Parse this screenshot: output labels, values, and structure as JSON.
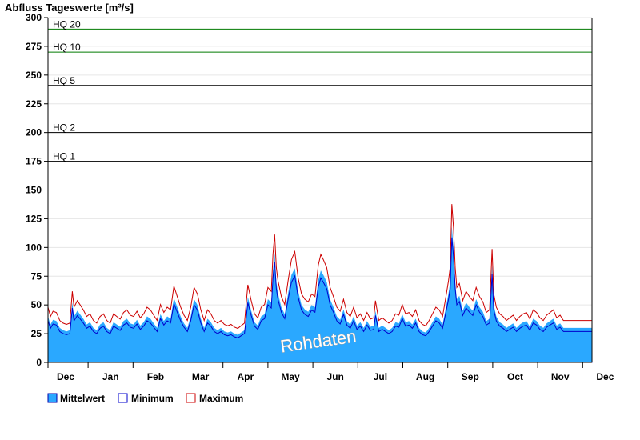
{
  "chart_data": {
    "type": "area",
    "title": "Abfluss Tageswerte [m³/s]",
    "ylim": [
      0,
      300
    ],
    "yticks": [
      0,
      25,
      50,
      75,
      100,
      125,
      150,
      175,
      200,
      225,
      250,
      275,
      300
    ],
    "grid": true,
    "x_months": [
      "Dec",
      "Jan",
      "Feb",
      "Mar",
      "Apr",
      "May",
      "Jun",
      "Jul",
      "Aug",
      "Sep",
      "Oct",
      "Nov",
      "Dec"
    ],
    "thresholds": [
      {
        "label": "HQ 20",
        "value": 290,
        "color": "#007a00"
      },
      {
        "label": "HQ 10",
        "value": 270,
        "color": "#007a00"
      },
      {
        "label": "HQ 5",
        "value": 241,
        "color": "#000000"
      },
      {
        "label": "HQ 2",
        "value": 200,
        "color": "#000000"
      },
      {
        "label": "HQ 1",
        "value": 175,
        "color": "#000000"
      }
    ],
    "watermark": "Rohdaten",
    "legend_position": "bottom-left",
    "series": [
      {
        "name": "Mittelwert",
        "color": "#2aa8ff"
      },
      {
        "name": "Minimum",
        "color": "#0000cc"
      },
      {
        "name": "Maximum",
        "color": "#cc0000"
      }
    ],
    "mean_points": [
      [
        0,
        40
      ],
      [
        3,
        33
      ],
      [
        6,
        37
      ],
      [
        10,
        36
      ],
      [
        14,
        30
      ],
      [
        18,
        28
      ],
      [
        22,
        27
      ],
      [
        26,
        28
      ],
      [
        29,
        52
      ],
      [
        31,
        40
      ],
      [
        35,
        45
      ],
      [
        38,
        42
      ],
      [
        42,
        38
      ],
      [
        46,
        33
      ],
      [
        50,
        35
      ],
      [
        54,
        30
      ],
      [
        58,
        28
      ],
      [
        62,
        33
      ],
      [
        66,
        35
      ],
      [
        70,
        30
      ],
      [
        74,
        28
      ],
      [
        78,
        35
      ],
      [
        82,
        33
      ],
      [
        86,
        31
      ],
      [
        90,
        36
      ],
      [
        94,
        38
      ],
      [
        98,
        34
      ],
      [
        102,
        33
      ],
      [
        106,
        37
      ],
      [
        110,
        32
      ],
      [
        114,
        35
      ],
      [
        118,
        40
      ],
      [
        122,
        38
      ],
      [
        126,
        34
      ],
      [
        130,
        30
      ],
      [
        134,
        42
      ],
      [
        138,
        36
      ],
      [
        142,
        40
      ],
      [
        146,
        38
      ],
      [
        150,
        56
      ],
      [
        154,
        48
      ],
      [
        158,
        40
      ],
      [
        162,
        34
      ],
      [
        166,
        30
      ],
      [
        170,
        40
      ],
      [
        174,
        55
      ],
      [
        178,
        50
      ],
      [
        182,
        38
      ],
      [
        186,
        30
      ],
      [
        190,
        38
      ],
      [
        194,
        35
      ],
      [
        198,
        30
      ],
      [
        202,
        28
      ],
      [
        206,
        30
      ],
      [
        210,
        27
      ],
      [
        214,
        26
      ],
      [
        218,
        27
      ],
      [
        222,
        25
      ],
      [
        226,
        24
      ],
      [
        230,
        26
      ],
      [
        234,
        28
      ],
      [
        238,
        57
      ],
      [
        242,
        45
      ],
      [
        246,
        35
      ],
      [
        250,
        32
      ],
      [
        254,
        40
      ],
      [
        258,
        42
      ],
      [
        262,
        55
      ],
      [
        266,
        52
      ],
      [
        268,
        80
      ],
      [
        270,
        95
      ],
      [
        272,
        70
      ],
      [
        274,
        60
      ],
      [
        278,
        48
      ],
      [
        282,
        42
      ],
      [
        286,
        60
      ],
      [
        290,
        76
      ],
      [
        294,
        82
      ],
      [
        298,
        62
      ],
      [
        302,
        50
      ],
      [
        306,
        46
      ],
      [
        310,
        44
      ],
      [
        314,
        50
      ],
      [
        318,
        48
      ],
      [
        322,
        72
      ],
      [
        325,
        80
      ],
      [
        328,
        76
      ],
      [
        332,
        70
      ],
      [
        336,
        55
      ],
      [
        340,
        48
      ],
      [
        344,
        40
      ],
      [
        348,
        37
      ],
      [
        352,
        46
      ],
      [
        356,
        36
      ],
      [
        360,
        33
      ],
      [
        364,
        40
      ],
      [
        368,
        32
      ],
      [
        372,
        35
      ],
      [
        376,
        30
      ],
      [
        380,
        36
      ],
      [
        384,
        31
      ],
      [
        388,
        32
      ],
      [
        390,
        45
      ],
      [
        394,
        30
      ],
      [
        398,
        32
      ],
      [
        402,
        30
      ],
      [
        406,
        28
      ],
      [
        410,
        30
      ],
      [
        414,
        35
      ],
      [
        418,
        34
      ],
      [
        422,
        42
      ],
      [
        426,
        35
      ],
      [
        430,
        36
      ],
      [
        434,
        33
      ],
      [
        438,
        38
      ],
      [
        442,
        30
      ],
      [
        446,
        27
      ],
      [
        450,
        26
      ],
      [
        454,
        30
      ],
      [
        458,
        35
      ],
      [
        462,
        40
      ],
      [
        466,
        38
      ],
      [
        470,
        33
      ],
      [
        474,
        48
      ],
      [
        477,
        60
      ],
      [
        479,
        70
      ],
      [
        481,
        118
      ],
      [
        483,
        100
      ],
      [
        485,
        70
      ],
      [
        487,
        55
      ],
      [
        490,
        58
      ],
      [
        494,
        45
      ],
      [
        498,
        52
      ],
      [
        502,
        48
      ],
      [
        506,
        45
      ],
      [
        510,
        55
      ],
      [
        514,
        48
      ],
      [
        518,
        44
      ],
      [
        522,
        36
      ],
      [
        526,
        38
      ],
      [
        529,
        84
      ],
      [
        531,
        50
      ],
      [
        534,
        40
      ],
      [
        538,
        35
      ],
      [
        542,
        33
      ],
      [
        546,
        30
      ],
      [
        550,
        32
      ],
      [
        554,
        34
      ],
      [
        558,
        30
      ],
      [
        562,
        33
      ],
      [
        566,
        35
      ],
      [
        570,
        36
      ],
      [
        574,
        31
      ],
      [
        578,
        38
      ],
      [
        582,
        36
      ],
      [
        586,
        32
      ],
      [
        590,
        30
      ],
      [
        594,
        34
      ],
      [
        598,
        36
      ],
      [
        602,
        38
      ],
      [
        606,
        32
      ],
      [
        610,
        34
      ],
      [
        614,
        30
      ],
      [
        618,
        30
      ],
      [
        624,
        30
      ],
      [
        630,
        30
      ],
      [
        636,
        30
      ],
      [
        642,
        30
      ],
      [
        648,
        30
      ]
    ]
  },
  "legend": {
    "mittel": "Mittelwert",
    "min": "Minimum",
    "max": "Maximum"
  }
}
